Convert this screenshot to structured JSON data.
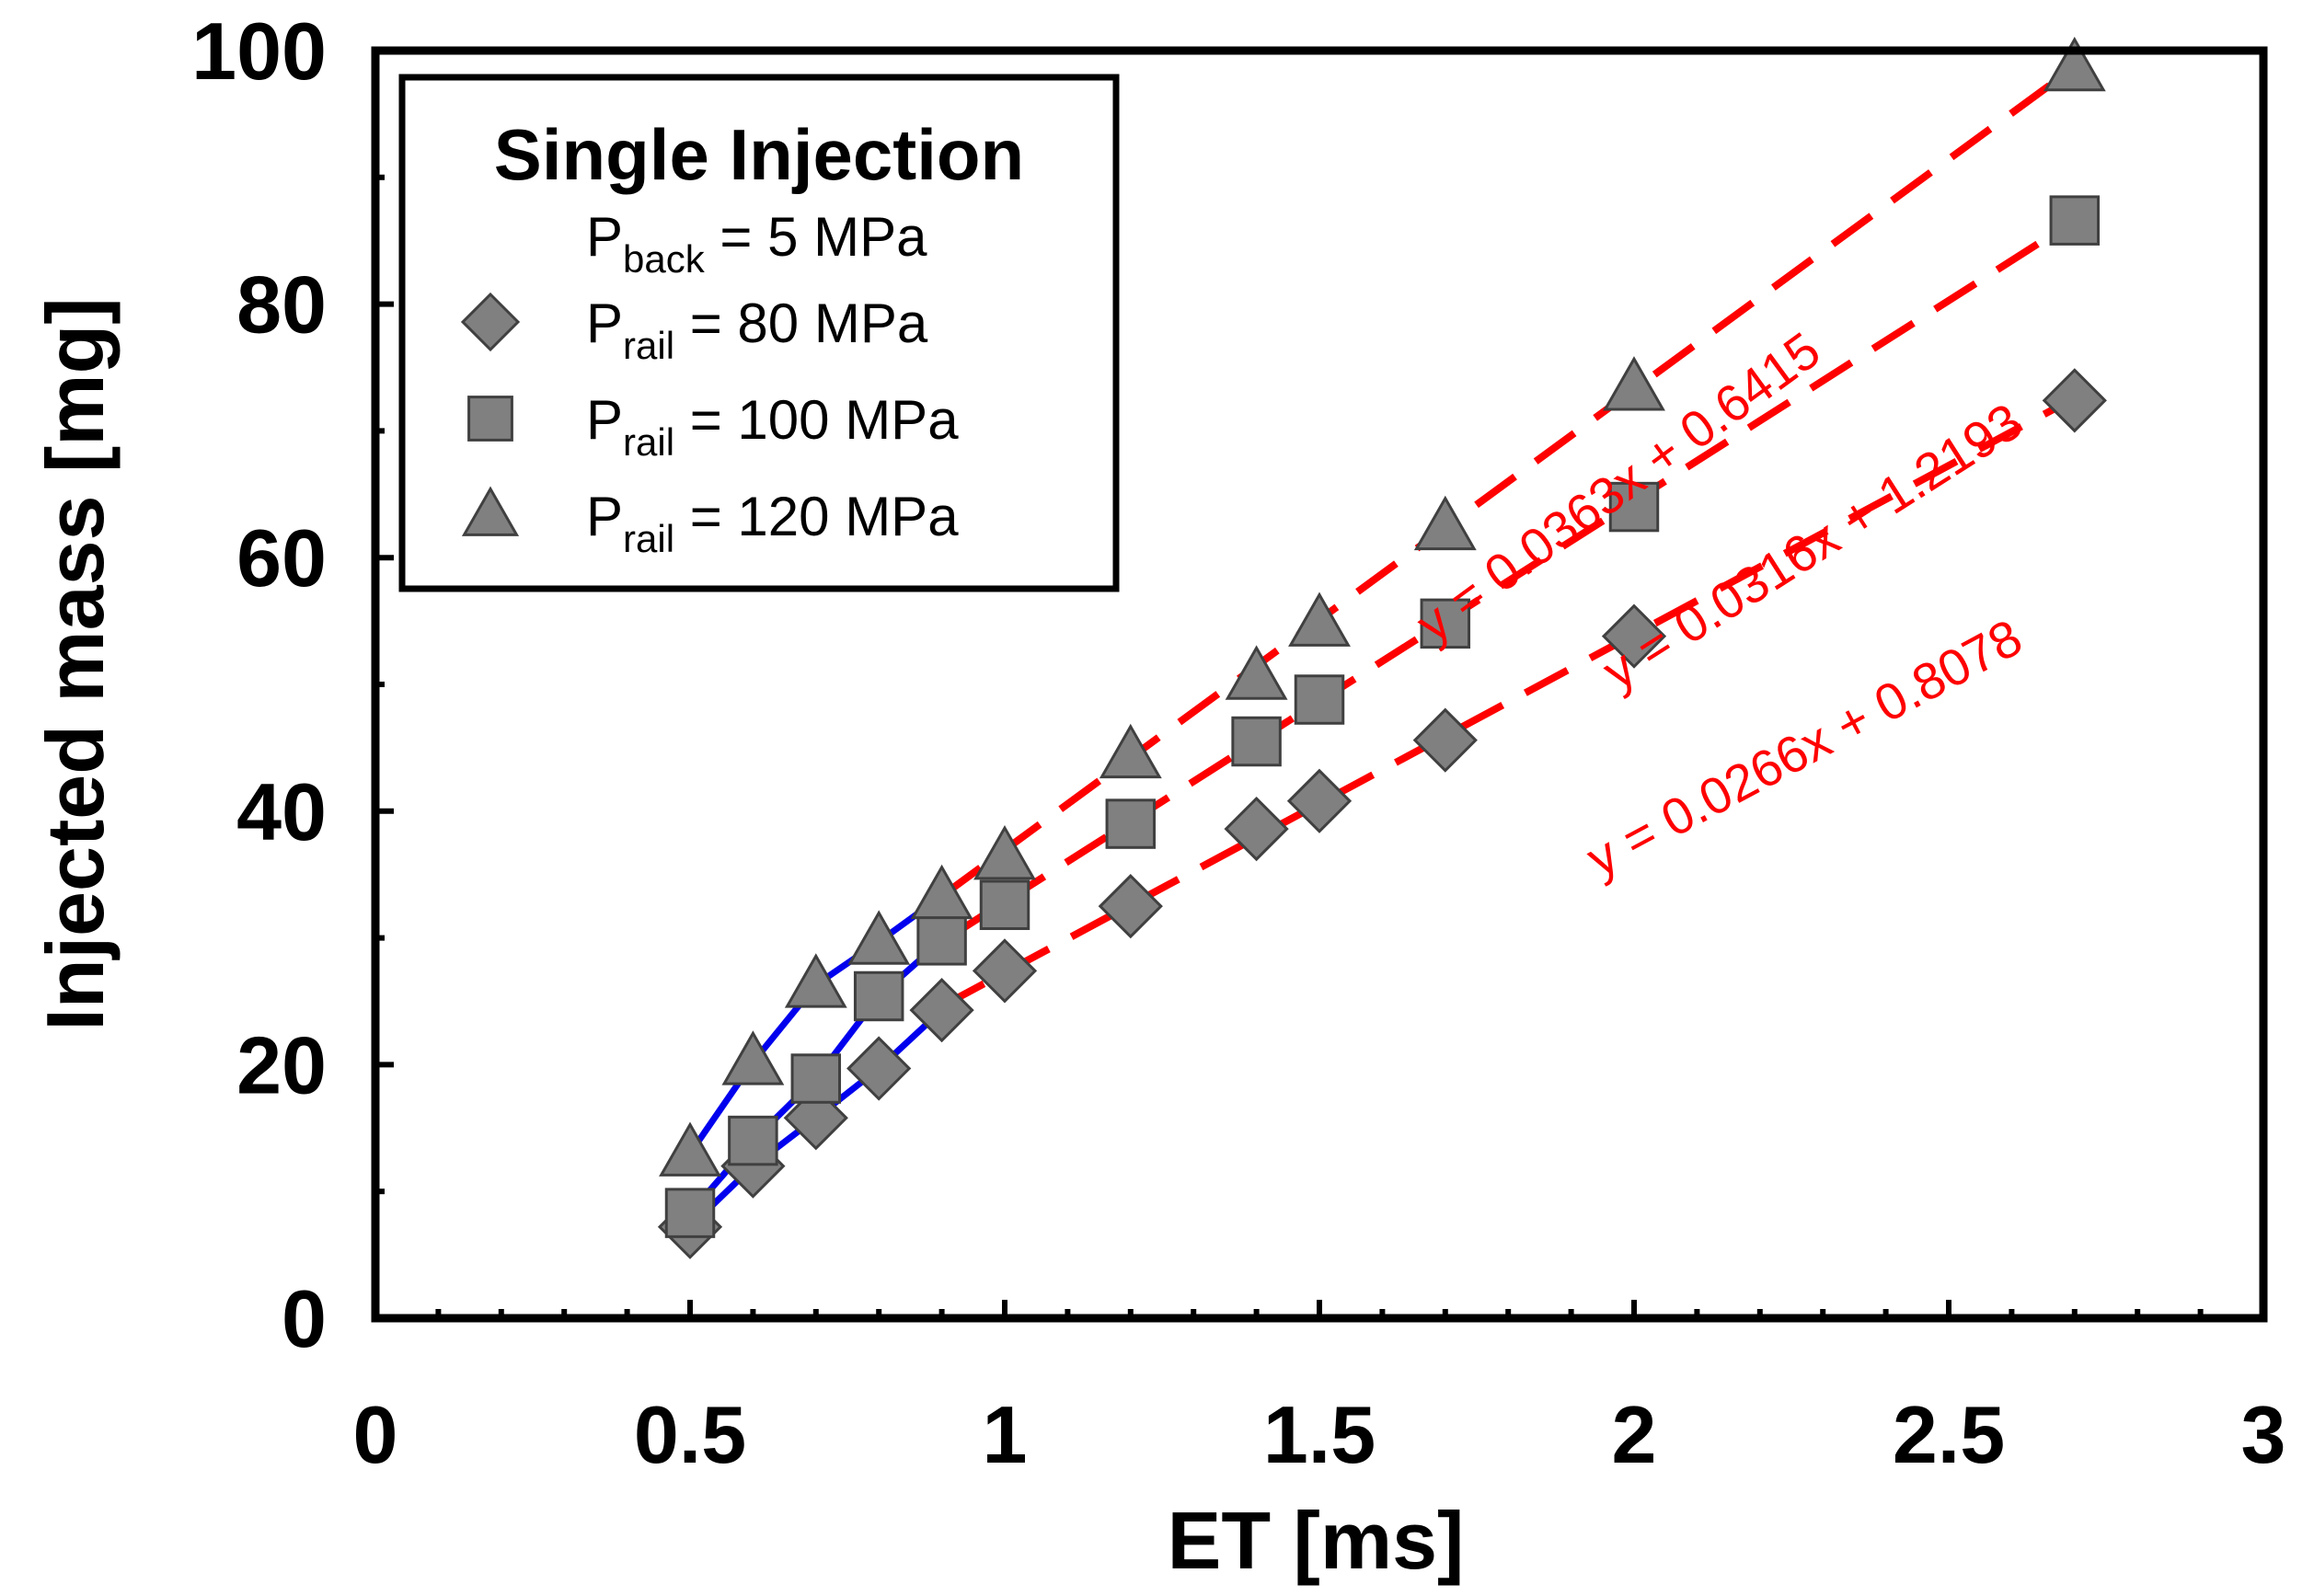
{
  "chart_data": {
    "type": "scatter",
    "xlabel": "ET [ms]",
    "ylabel": "Injected mass [mg]",
    "xlim": [
      0,
      3
    ],
    "ylim": [
      0,
      100
    ],
    "xticks": [
      "0",
      "0.5",
      "1",
      "1.5",
      "2",
      "2.5",
      "3"
    ],
    "yticks": [
      "0",
      "20",
      "40",
      "60",
      "80",
      "100"
    ],
    "legend": {
      "position": "top-left",
      "title": "Single Injection",
      "condition": {
        "main": "P",
        "sub": "back",
        "rest": " = 5 MPa"
      },
      "entries": [
        {
          "main": "P",
          "sub": "rail",
          "rest": " = 80 MPa",
          "marker": "diamond"
        },
        {
          "main": "P",
          "sub": "rail",
          "rest": " = 100 MPa",
          "marker": "square"
        },
        {
          "main": "P",
          "sub": "rail",
          "rest": " = 120 MPa",
          "marker": "triangle"
        }
      ]
    },
    "series": [
      {
        "name": "Prail = 80 MPa",
        "marker": "diamond",
        "x": [
          0.5,
          0.6,
          0.7,
          0.8,
          0.9,
          1.0,
          1.2,
          1.4,
          1.5,
          1.7,
          2.0,
          2.7
        ],
        "y": [
          7.2,
          12.0,
          15.8,
          19.7,
          24.3,
          27.4,
          32.5,
          38.6,
          40.8,
          45.6,
          53.8,
          72.4
        ],
        "blue_line_x": [
          0.5,
          0.6,
          0.7,
          0.8,
          0.9
        ],
        "blue_line_y": [
          7.2,
          12.0,
          15.8,
          19.7,
          24.3
        ],
        "fit_label": "y = 0.0266x + 0.8078",
        "fit_x": [
          0.9,
          2.7
        ],
        "fit_y": [
          24.6,
          72.6
        ]
      },
      {
        "name": "Prail = 100 MPa",
        "marker": "square",
        "x": [
          0.5,
          0.6,
          0.7,
          0.8,
          0.9,
          1.0,
          1.2,
          1.4,
          1.5,
          1.7,
          2.0,
          2.7
        ],
        "y": [
          8.3,
          14.0,
          18.9,
          25.4,
          29.8,
          32.6,
          39.0,
          45.5,
          48.8,
          54.8,
          64.0,
          86.6
        ],
        "blue_line_x": [
          0.5,
          0.6,
          0.7,
          0.8,
          0.9
        ],
        "blue_line_y": [
          8.3,
          14.0,
          18.9,
          25.4,
          29.8
        ],
        "fit_label": "y = 0.0316x + 1.2193",
        "fit_x": [
          0.9,
          2.7
        ],
        "fit_y": [
          29.7,
          86.6
        ]
      },
      {
        "name": "Prail = 120 MPa",
        "marker": "triangle",
        "x": [
          0.5,
          0.6,
          0.7,
          0.8,
          0.9,
          1.0,
          1.2,
          1.4,
          1.5,
          1.7,
          2.0,
          2.7
        ],
        "y": [
          13.0,
          20.2,
          26.3,
          29.7,
          33.3,
          36.4,
          44.4,
          50.6,
          54.8,
          62.4,
          73.4,
          98.6
        ],
        "blue_line_x": [
          0.5,
          0.6,
          0.7,
          0.8,
          0.9
        ],
        "blue_line_y": [
          13.0,
          20.2,
          26.3,
          29.7,
          33.3
        ],
        "fit_label": "y = 0.0363x + 0.6415",
        "fit_x": [
          0.9,
          2.7
        ],
        "fit_y": [
          33.3,
          98.7
        ]
      }
    ],
    "colors": {
      "marker_fill": "#808080",
      "marker_stroke": "#404040",
      "measured_line": "#0000ee",
      "fit_line": "#ff0000"
    }
  }
}
